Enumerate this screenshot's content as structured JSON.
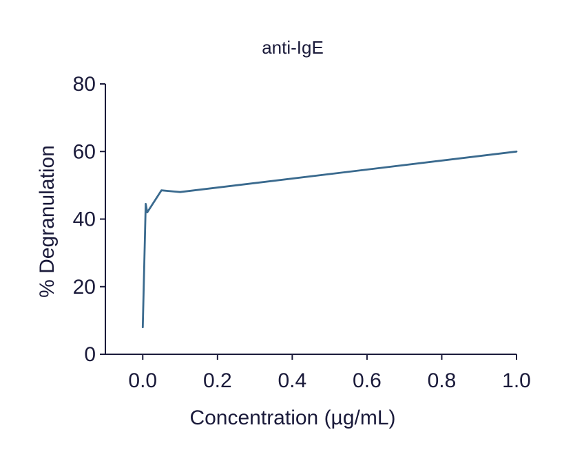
{
  "chart_data": {
    "type": "line",
    "title": "anti-IgE",
    "xlabel": "Concentration (µg/mL)",
    "ylabel": "% Degranulation",
    "xlim": [
      -0.1,
      1.0
    ],
    "ylim": [
      0,
      80
    ],
    "xticks": [
      0.0,
      0.2,
      0.4,
      0.6,
      0.8,
      1.0
    ],
    "xtick_labels": [
      "0.0",
      "0.2",
      "0.4",
      "0.6",
      "0.8",
      "1.0"
    ],
    "yticks": [
      0,
      20,
      40,
      60,
      80
    ],
    "ytick_labels": [
      "0",
      "20",
      "40",
      "60",
      "80"
    ],
    "grid": false,
    "series": [
      {
        "color": "#3a6a8e",
        "x": [
          0.0,
          0.008,
          0.012,
          0.05,
          0.1,
          1.0
        ],
        "y": [
          8,
          44.5,
          42,
          48.5,
          48,
          60
        ]
      }
    ]
  }
}
